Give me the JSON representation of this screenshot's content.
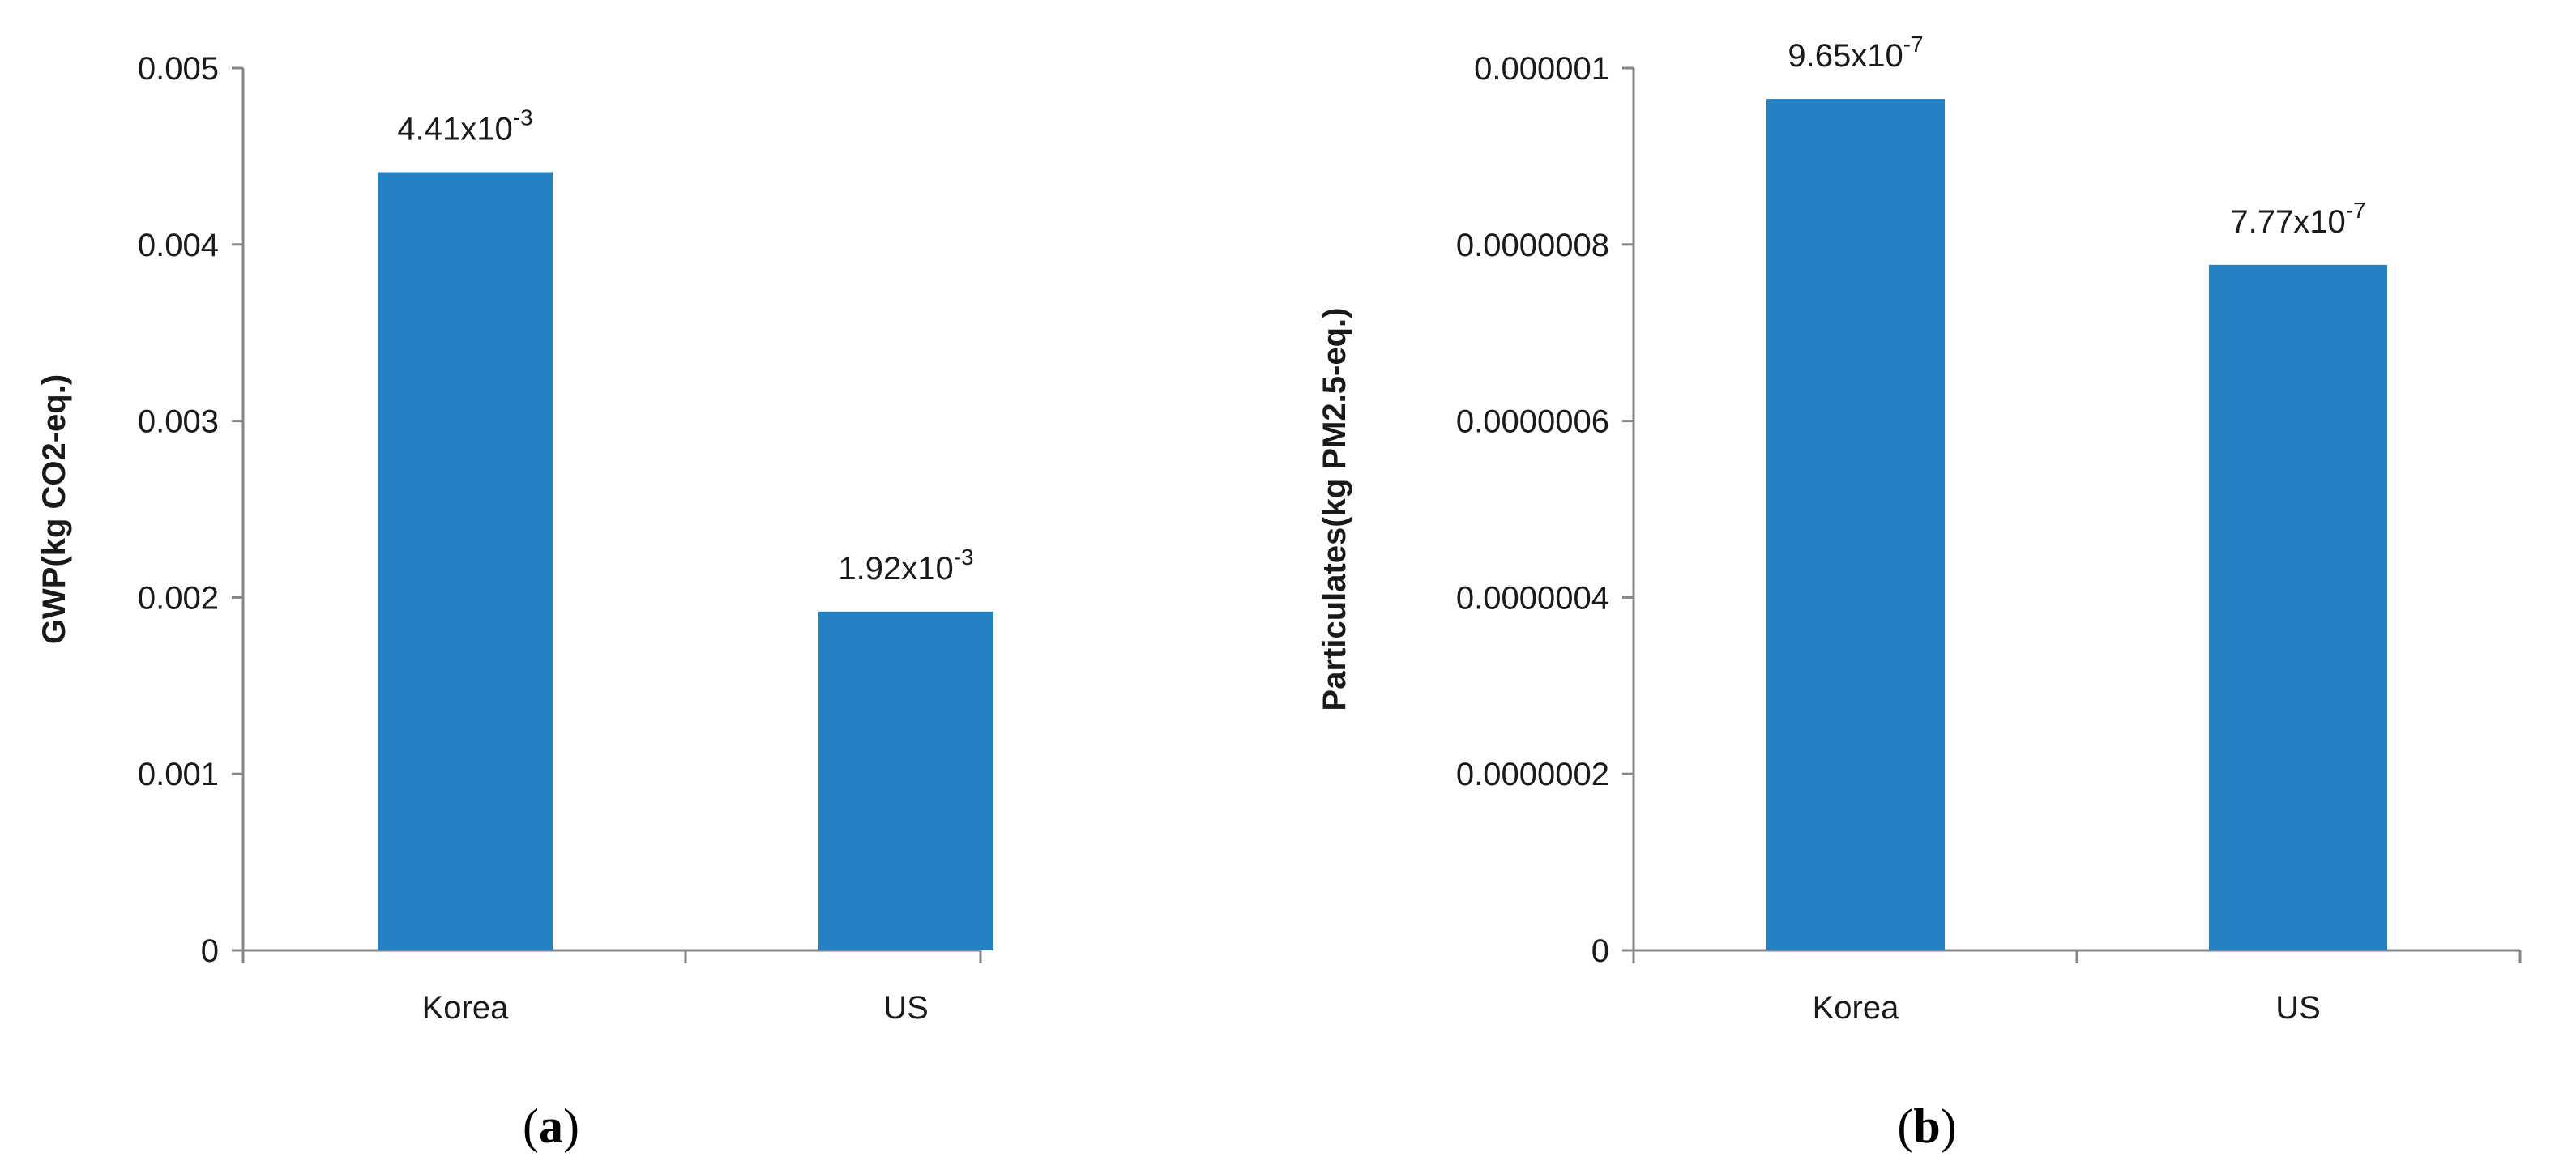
{
  "colors": {
    "bar": "#2581C2",
    "axis": "#868686",
    "text": "#1a1a1a"
  },
  "chart_data": [
    {
      "type": "bar",
      "panel_label": "(a)",
      "title": "",
      "xlabel": "",
      "ylabel": "GWP(kg CO2-eq.)",
      "categories": [
        "Korea",
        "US"
      ],
      "values": [
        0.00441,
        0.00192
      ],
      "data_labels": [
        {
          "base": "4.41x10",
          "exp": "-3"
        },
        {
          "base": "1.92x10",
          "exp": "-3"
        }
      ],
      "ylim": [
        0,
        0.005
      ],
      "yticks": [
        "0",
        "0.001",
        "0.002",
        "0.003",
        "0.004",
        "0.005"
      ],
      "grid": false,
      "legend": "none"
    },
    {
      "type": "bar",
      "panel_label": "(b)",
      "title": "",
      "xlabel": "",
      "ylabel": "Particulates(kg PM2.5-eq.)",
      "categories": [
        "Korea",
        "US"
      ],
      "values": [
        9.65e-07,
        7.77e-07
      ],
      "data_labels": [
        {
          "base": "9.65x10",
          "exp": "-7"
        },
        {
          "base": "7.77x10",
          "exp": "-7"
        }
      ],
      "ylim": [
        0,
        1e-06
      ],
      "yticks": [
        "0",
        "0.0000002",
        "0.0000004",
        "0.0000006",
        "0.0000008",
        "0.000001"
      ],
      "grid": false,
      "legend": "none"
    }
  ]
}
